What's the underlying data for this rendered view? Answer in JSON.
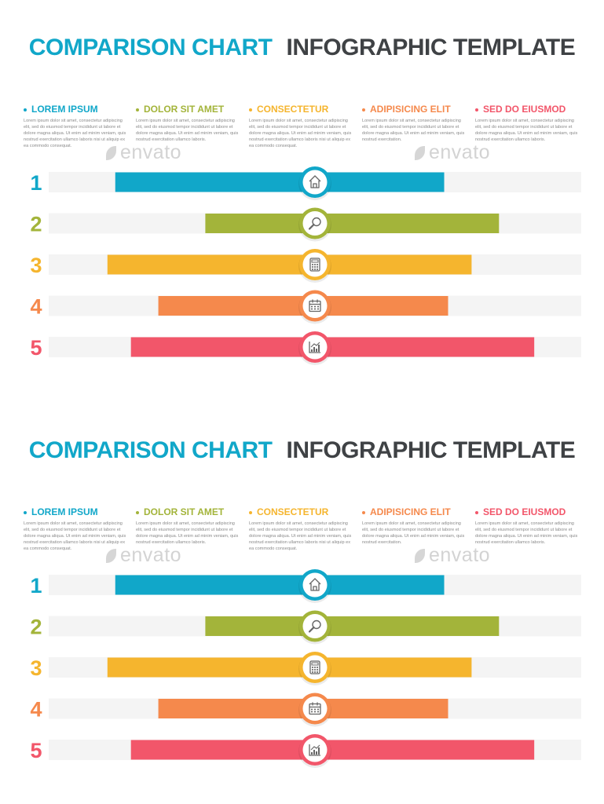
{
  "title": {
    "part1": "COMPARISON CHART",
    "part2": "INFOGRAPHIC TEMPLATE"
  },
  "legend": [
    {
      "label": "LOREM IPSUM",
      "color": "#11a7c9",
      "text": "Lorem ipsum dolor sit amet, consectetur adipiscing elit, sed do eiusmod tempor incididunt ut labore et dolore magna aliqua. Ut enim ad minim veniam, quis nostrud exercitation ullamco laboris nisi ut aliquip ex ea commodo consequat."
    },
    {
      "label": "DOLOR SIT AMET",
      "color": "#a3b43a",
      "text": "Lorem ipsum dolor sit amet, consectetur adipiscing elit, sed do eiusmod tempor incididunt ut labore et dolore magna aliqua. Ut enim ad minim veniam, quis nostrud exercitation ullamco laboris."
    },
    {
      "label": "CONSECTETUR",
      "color": "#f5b52e",
      "text": "Lorem ipsum dolor sit amet, consectetur adipiscing elit, sed do eiusmod tempor incididunt ut labore et dolore magna aliqua. Ut enim ad minim veniam, quis nostrud exercitation ullamco laboris nisi ut aliquip ex ea commodo consequat."
    },
    {
      "label": "ADIPISICING ELIT",
      "color": "#f5894c",
      "text": "Lorem ipsum dolor sit amet, consectetur adipiscing elit, sed do eiusmod tempor incididunt ut labore et dolore magna aliqua. Ut enim ad minim veniam, quis nostrud exercitation."
    },
    {
      "label": "SED DO EIUSMOD",
      "color": "#f2566a",
      "text": "Lorem ipsum dolor sit amet, consectetur adipiscing elit, sed do eiusmod tempor incididunt ut labore et dolore magna aliqua. Ut enim ad minim veniam, quis nostrud exercitation ullamco laboris."
    }
  ],
  "watermark": "envato",
  "chart_data": {
    "type": "bar",
    "categories": [
      "1",
      "2",
      "3",
      "4",
      "5"
    ],
    "values": [
      {
        "start": -0.51,
        "end": 0.33
      },
      {
        "start": -0.28,
        "end": 0.47
      },
      {
        "start": -0.53,
        "end": 0.4
      },
      {
        "start": -0.4,
        "end": 0.34
      },
      {
        "start": -0.47,
        "end": 0.56
      }
    ],
    "icons": [
      "house-icon",
      "magnifier-icon",
      "calculator-icon",
      "calendar-icon",
      "chart-icon"
    ],
    "colors": [
      "#11a7c9",
      "#a3b43a",
      "#f5b52e",
      "#f5894c",
      "#f2566a"
    ],
    "track_color": "#f4f4f4",
    "xlim": [
      -0.68,
      0.68
    ]
  }
}
